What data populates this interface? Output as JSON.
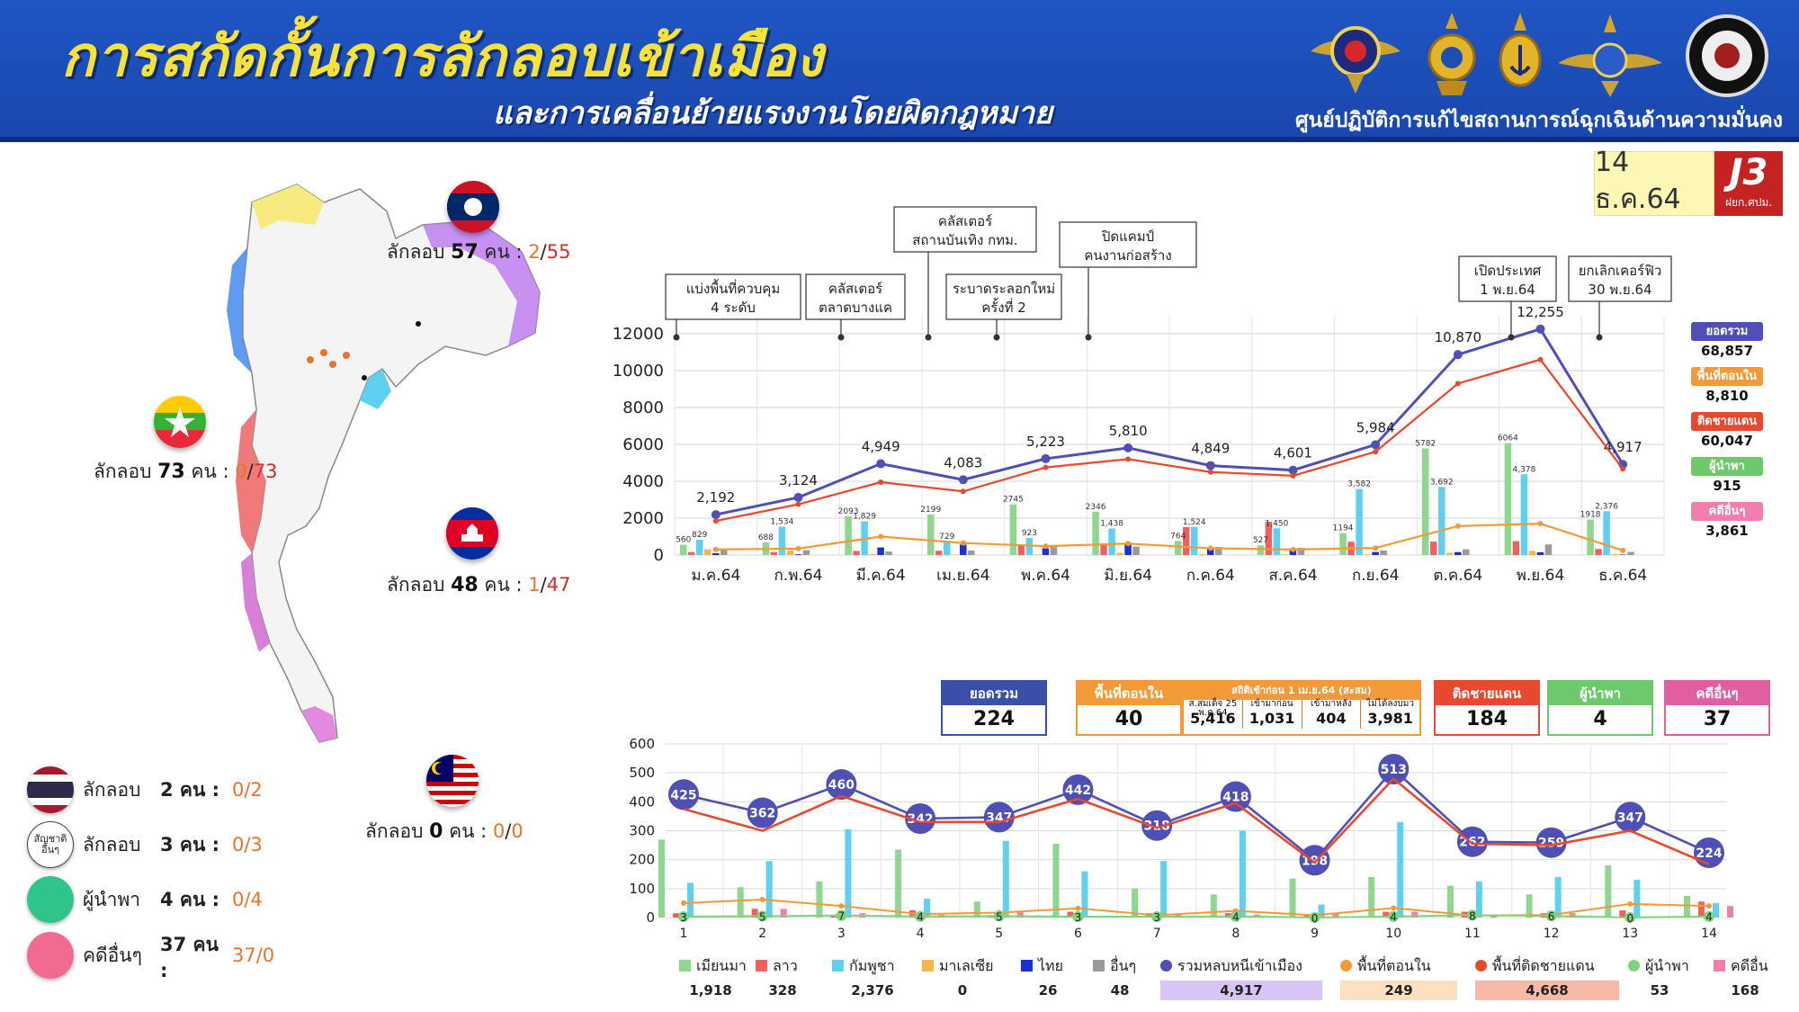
{
  "header": {
    "title": "การสกัดกั้นการลักลอบเข้าเมือง",
    "subtitle": "และการเคลื่อนย้ายแรงงานโดยผิดกฎหมาย",
    "center_name": "ศูนย์ปฏิบัติการแก้ไขสถานการณ์ฉุกเฉินด้านความมั่นคง",
    "date": "14 ธ.ค.64",
    "badge": "J3",
    "badge_sub": "ฝยก.ศปม."
  },
  "colors": {
    "header_bg": "#1f56c4",
    "title": "#f6e23a",
    "total": "#4f4fb5",
    "internal": "#f29a38",
    "border": "#e8492e",
    "guide": "#7fd37f",
    "other_case": "#f07fb0",
    "myanmar": "#8fd68f",
    "laos": "#f25f5f",
    "cambodia": "#5fd0f0",
    "malaysia": "#f5b64a",
    "thai": "#1a2fd6",
    "others": "#9a9a9a"
  },
  "map": {
    "laos": {
      "label": "ลักลอบ",
      "count": "57",
      "unit": "คน :",
      "a": "2",
      "b": "55"
    },
    "myanmar": {
      "label": "ลักลอบ",
      "count": "73",
      "unit": "คน :",
      "a": "0",
      "b": "73"
    },
    "cambodia": {
      "label": "ลักลอบ",
      "count": "48",
      "unit": "คน :",
      "a": "1",
      "b": "47"
    },
    "malaysia": {
      "label": "ลักลอบ",
      "count": "0",
      "unit": "คน :",
      "a": "0",
      "b": "0"
    },
    "legend": [
      {
        "label": "ลักลอบ",
        "count": "2 คน :",
        "frac": "0/2",
        "icon": "thai-flag-icon"
      },
      {
        "label": "ลักลอบ",
        "count": "3 คน :",
        "frac": "0/3",
        "icon": "other-nationality-icon",
        "icon_text": "สัญชาติ อื่นๆ"
      },
      {
        "label": "ผู้นำพา",
        "count": "4 คน :",
        "frac": "0/4",
        "icon": "guide-dot-icon"
      },
      {
        "label": "คดีอื่นๆ",
        "count": "37 คน :",
        "frac": "37/0",
        "icon": "other-case-dot-icon"
      }
    ]
  },
  "annotations": [
    {
      "text1": "แบ่งพื้นที่ควบคุม",
      "text2": "4 ระดับ"
    },
    {
      "text1": "คลัสเตอร์",
      "text2": "ตลาดบางแค"
    },
    {
      "text1": "คลัสเตอร์",
      "text2": "สถานบันเทิง กทม."
    },
    {
      "text1": "ระบาดระลอกใหม่",
      "text2": "ครั้งที่ 2"
    },
    {
      "text1": "ปิดแคมป์",
      "text2": "คนงานก่อสร้าง"
    },
    {
      "text1": "เปิดประเทศ",
      "text2": "1 พ.ย.64"
    },
    {
      "text1": "ยกเลิกเคอร์ฟิว",
      "text2": "30 พ.ย.64"
    }
  ],
  "right_legend": [
    {
      "label": "ยอดรวม",
      "value": "68,857",
      "color": "#4f4fb5"
    },
    {
      "label": "พื้นที่ตอนใน",
      "value": "8,810",
      "color": "#f29a38"
    },
    {
      "label": "ติดชายแดน",
      "value": "60,047",
      "color": "#e8492e"
    },
    {
      "label": "ผู้นำพา",
      "value": "915",
      "color": "#6cc96c"
    },
    {
      "label": "คดีอื่นๆ",
      "value": "3,861",
      "color": "#f07fb0"
    }
  ],
  "summary": {
    "total": {
      "label": "ยอดรวม",
      "value": "224"
    },
    "internal": {
      "label": "พื้นที่ตอนใน",
      "value": "40"
    },
    "prior": {
      "label": "สถิติเข้าก่อน 1 เม.ย.64 (สะสม)",
      "cols": [
        "ส.สมเด็จ 25 พ.ค.64",
        "เข้ามาก่อน",
        "เข้ามาหลัง",
        "ไม่ได้ลงบมว"
      ],
      "values": [
        "5,416",
        "1,031",
        "404",
        "3,981"
      ]
    },
    "border": {
      "label": "ติดชายแดน",
      "value": "184"
    },
    "guide": {
      "label": "ผู้นำพา",
      "value": "4"
    },
    "other": {
      "label": "คดีอื่นๆ",
      "value": "37"
    }
  },
  "bottom_legend": [
    {
      "label": "เมียนมา",
      "value": "1,918",
      "color": "#8fd68f",
      "kind": "bar"
    },
    {
      "label": "ลาว",
      "value": "328",
      "color": "#f25f5f",
      "kind": "bar"
    },
    {
      "label": "กัมพูชา",
      "value": "2,376",
      "color": "#5fd0f0",
      "kind": "bar"
    },
    {
      "label": "มาเลเซีย",
      "value": "0",
      "color": "#f5b64a",
      "kind": "bar"
    },
    {
      "label": "ไทย",
      "value": "26",
      "color": "#1a2fd6",
      "kind": "bar"
    },
    {
      "label": "อื่นๆ",
      "value": "48",
      "color": "#9a9a9a",
      "kind": "bar"
    },
    {
      "label": "รวมหลบหนีเข้าเมือง",
      "value": "4,917",
      "color": "#4f4fb5",
      "kind": "line"
    },
    {
      "label": "พื้นที่ตอนใน",
      "value": "249",
      "color": "#f29a38",
      "kind": "line"
    },
    {
      "label": "พื้นที่ติดชายแดน",
      "value": "4,668",
      "color": "#e8492e",
      "kind": "line"
    },
    {
      "label": "ผู้นำพา",
      "value": "53",
      "color": "#7fd37f",
      "kind": "line"
    },
    {
      "label": "คดีอื่น",
      "value": "168",
      "color": "#f07fb0",
      "kind": "bar"
    }
  ],
  "chart_data": [
    {
      "type": "line",
      "title": "",
      "categories": [
        "ม.ค.64",
        "ก.พ.64",
        "มี.ค.64",
        "เม.ย.64",
        "พ.ค.64",
        "มิ.ย.64",
        "ก.ค.64",
        "ส.ค.64",
        "ก.ย.64",
        "ต.ค.64",
        "พ.ย.64",
        "ธ.ค.64"
      ],
      "ylim": [
        0,
        12000
      ],
      "yticks": [
        0,
        2000,
        4000,
        6000,
        8000,
        10000,
        12000
      ],
      "grid": true,
      "legend": "right",
      "series": [
        {
          "name": "ยอดรวม",
          "values": [
            2192,
            3124,
            4949,
            4083,
            5223,
            5810,
            4849,
            4601,
            5984,
            10870,
            12255,
            4917
          ],
          "labels": [
            "2,192",
            "3,124",
            "4,949",
            "4,083",
            "5,223",
            "5,810",
            "4,849",
            "4,601",
            "5,984",
            "10,870",
            "12,255",
            "4,917"
          ]
        },
        {
          "name": "ติดชายแดน",
          "values": [
            1850,
            2750,
            3950,
            3450,
            4750,
            5200,
            4500,
            4300,
            5600,
            9300,
            10600,
            4668
          ]
        },
        {
          "name": "พื้นที่ตอนใน",
          "values": [
            300,
            350,
            1000,
            650,
            480,
            620,
            370,
            300,
            380,
            1570,
            1700,
            249
          ]
        }
      ],
      "bar_groups": [
        {
          "month": "ม.ค.64",
          "bars": [
            560,
            158,
            829,
            313,
            103,
            316
          ]
        },
        {
          "month": "ก.พ.64",
          "bars": [
            688,
            160,
            1534,
            241,
            41,
            260
          ]
        },
        {
          "month": "มี.ค.64",
          "bars": [
            2093,
            221,
            1829,
            59,
            410,
            188
          ]
        },
        {
          "month": "เม.ย.64",
          "bars": [
            2199,
            233,
            729,
            27,
            568,
            241
          ]
        },
        {
          "month": "พ.ค.64",
          "bars": [
            2745,
            506,
            923,
            35,
            361,
            497
          ]
        },
        {
          "month": "มิ.ย.64",
          "bars": [
            2346,
            604,
            1438,
            121,
            669,
            457
          ]
        },
        {
          "month": "ก.ค.64",
          "bars": [
            764,
            1513,
            1524,
            60,
            373,
            443
          ]
        },
        {
          "month": "ส.ค.64",
          "bars": [
            527,
            1802,
            1450,
            37,
            321,
            393
          ]
        },
        {
          "month": "ก.ย.64",
          "bars": [
            1194,
            719,
            3582,
            33,
            165,
            246
          ]
        },
        {
          "month": "ต.ค.64",
          "bars": [
            5782,
            726,
            3692,
            122,
            159,
            311
          ]
        },
        {
          "month": "พ.ย.64",
          "bars": [
            6064,
            757,
            4378,
            224,
            150,
            573
          ]
        },
        {
          "month": "ธ.ค.64",
          "bars": [
            1918,
            328,
            2376,
            53,
            26,
            168
          ]
        }
      ],
      "bar_labels": [
        [
          "560",
          "158",
          "829",
          "313",
          "103",
          "316"
        ],
        [
          "688",
          "160",
          "1,534",
          "241",
          "41",
          "260"
        ],
        [
          "2093",
          "221",
          "1,829",
          "59",
          "410",
          "188"
        ],
        [
          "2199",
          "233",
          "729",
          "27",
          "568",
          "241"
        ],
        [
          "2745",
          "506",
          "923",
          "35",
          "361",
          "497"
        ],
        [
          "2346",
          "604",
          "1,438",
          "121",
          "669",
          "457"
        ],
        [
          "764",
          "1,513",
          "1,524",
          "60",
          "373",
          "443"
        ],
        [
          "527",
          "1,802",
          "1,450",
          "37",
          "321",
          "393"
        ],
        [
          "1194",
          "719",
          "3,582",
          "33",
          "165",
          "246"
        ],
        [
          "5782",
          "726",
          "3,692",
          "122",
          "159",
          "311"
        ],
        [
          "6064",
          "757",
          "4,378",
          "224",
          "150",
          "573"
        ],
        [
          "1918",
          "328",
          "2,376",
          "53",
          "26",
          "168"
        ]
      ]
    },
    {
      "type": "line",
      "title": "",
      "categories": [
        "1",
        "2",
        "3",
        "4",
        "5",
        "6",
        "7",
        "8",
        "9",
        "10",
        "11",
        "12",
        "13",
        "14"
      ],
      "ylim": [
        0,
        600
      ],
      "yticks": [
        0,
        100,
        200,
        300,
        400,
        500,
        600
      ],
      "grid": true,
      "series": [
        {
          "name": "รวมหลบหนีเข้าเมือง",
          "values": [
            425,
            362,
            460,
            342,
            347,
            442,
            318,
            418,
            198,
            513,
            262,
            259,
            347,
            224
          ]
        },
        {
          "name": "พื้นที่ติดชายแดน",
          "values": [
            375,
            300,
            420,
            330,
            330,
            410,
            310,
            395,
            190,
            480,
            255,
            250,
            300,
            184
          ]
        },
        {
          "name": "พื้นที่ตอนใน",
          "values": [
            50,
            62,
            40,
            12,
            17,
            32,
            8,
            23,
            8,
            33,
            7,
            9,
            47,
            40
          ]
        },
        {
          "name": "ผู้นำพา",
          "values": [
            3,
            5,
            7,
            4,
            5,
            3,
            3,
            4,
            0,
            4,
            8,
            6,
            0,
            4
          ]
        }
      ],
      "bars": {
        "เมียนมา": [
          270,
          105,
          125,
          235,
          55,
          255,
          100,
          80,
          135,
          140,
          110,
          80,
          180,
          75
        ],
        "ลาว": [
          15,
          30,
          10,
          25,
          8,
          20,
          15,
          15,
          10,
          20,
          20,
          15,
          25,
          55
        ],
        "กัมพูชา": [
          120,
          195,
          305,
          65,
          265,
          160,
          195,
          300,
          45,
          330,
          125,
          140,
          130,
          50
        ],
        "คดีอื่น": [
          0,
          30,
          15,
          10,
          20,
          0,
          10,
          10,
          15,
          20,
          10,
          15,
          0,
          40
        ]
      }
    }
  ]
}
